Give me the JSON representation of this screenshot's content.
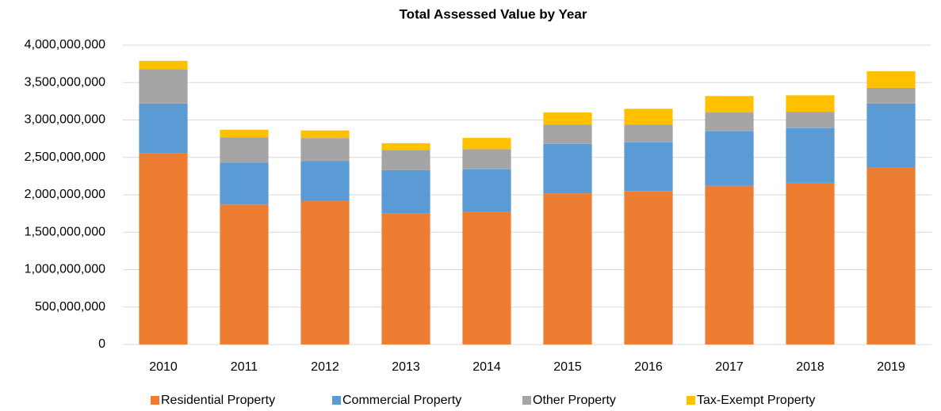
{
  "chart_data": {
    "type": "stacked_bar",
    "title": "Total Assessed Value by Year",
    "categories": [
      "2010",
      "2011",
      "2012",
      "2013",
      "2014",
      "2015",
      "2016",
      "2017",
      "2018",
      "2019"
    ],
    "series": [
      {
        "name": "Residential Property",
        "color": "#ed7d31",
        "values": [
          2560000000,
          1870000000,
          1920000000,
          1750000000,
          1770000000,
          2020000000,
          2050000000,
          2120000000,
          2160000000,
          2370000000
        ]
      },
      {
        "name": "Commercial Property",
        "color": "#5b9bd5",
        "values": [
          660000000,
          560000000,
          530000000,
          580000000,
          570000000,
          660000000,
          650000000,
          730000000,
          730000000,
          850000000
        ]
      },
      {
        "name": "Other Property",
        "color": "#a5a5a5",
        "values": [
          460000000,
          340000000,
          310000000,
          270000000,
          270000000,
          260000000,
          240000000,
          250000000,
          220000000,
          210000000
        ]
      },
      {
        "name": "Tax-Exempt Property",
        "color": "#ffc000",
        "values": [
          110000000,
          100000000,
          100000000,
          90000000,
          150000000,
          160000000,
          210000000,
          220000000,
          220000000,
          220000000
        ]
      }
    ],
    "ylim": [
      0,
      4000000000
    ],
    "yticks": [
      0,
      {
        "value": 500000000,
        "label": "500,000,000"
      },
      {
        "value": 1000000000,
        "label": "1,000,000,000"
      },
      {
        "value": 1500000000,
        "label": "1,500,000,000"
      },
      {
        "value": 2000000000,
        "label": "2,000,000,000"
      },
      {
        "value": 2500000000,
        "label": "2,500,000,000"
      },
      {
        "value": 3000000000,
        "label": "3,000,000,000"
      },
      {
        "value": 3500000000,
        "label": "3,500,000,000"
      },
      {
        "value": 4000000000,
        "label": "4,000,000,000"
      }
    ],
    "grid": true,
    "legend": "bottom"
  }
}
